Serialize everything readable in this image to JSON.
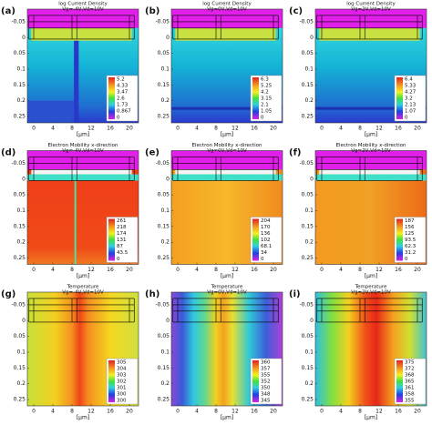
{
  "panels": [
    {
      "label": "(a)",
      "title": "log Current Density",
      "subtitle": "Vg=-4V,Vd=10V",
      "legend": [
        "5.2",
        "4.33",
        "3.47",
        "2.6",
        "1.73",
        "0.867",
        "0"
      ]
    },
    {
      "label": "(b)",
      "title": "log Current Density",
      "subtitle": "Vg=0V,Vd=10V",
      "legend": [
        "6.3",
        "5.25",
        "4.2",
        "3.15",
        "2.1",
        "1.05",
        "0"
      ]
    },
    {
      "label": "(c)",
      "title": "log Current Density",
      "subtitle": "Vg=2V,Vd=10V",
      "legend": [
        "6.4",
        "5.33",
        "4.27",
        "3.2",
        "2.13",
        "1.07",
        "0"
      ]
    },
    {
      "label": "(d)",
      "title": "Electron Mobility x-direction",
      "subtitle": "Vg=-4V,Vd=10V",
      "legend": [
        "261",
        "218",
        "174",
        "131",
        "87",
        "43.5",
        "0"
      ]
    },
    {
      "label": "(e)",
      "title": "Electron Mobility x-direction",
      "subtitle": "Vg=0V,Vd=10V",
      "legend": [
        "204",
        "170",
        "136",
        "102",
        "68.1",
        "34",
        "0"
      ]
    },
    {
      "label": "(f)",
      "title": "Electron Mobility x-direction",
      "subtitle": "Vg=2V,Vd=10V",
      "legend": [
        "187",
        "156",
        "125",
        "93.5",
        "62.3",
        "31.2",
        "0"
      ]
    },
    {
      "label": "(g)",
      "title": "Temperature",
      "subtitle": "Vg=-4V,Vd=10V",
      "legend": [
        "305",
        "304",
        "303",
        "302",
        "301",
        "300",
        "300"
      ]
    },
    {
      "label": "(h)",
      "title": "Temperature",
      "subtitle": "Vg=0V,Vd=10V",
      "legend": [
        "360",
        "357",
        "355",
        "352",
        "350",
        "348",
        "345"
      ]
    },
    {
      "label": "(i)",
      "title": "Temperature",
      "subtitle": "Vg=2V,Vd=10V",
      "legend": [
        "375",
        "372",
        "368",
        "365",
        "361",
        "358",
        "355"
      ]
    }
  ],
  "axes": {
    "yticks": [
      "-0.05",
      "0",
      "0.05",
      "0.1",
      "0.15",
      "0.2",
      "0.25"
    ],
    "xticks": [
      "0",
      "4",
      "8",
      "12",
      "16",
      "20"
    ],
    "xlabel": "[μm]"
  }
}
